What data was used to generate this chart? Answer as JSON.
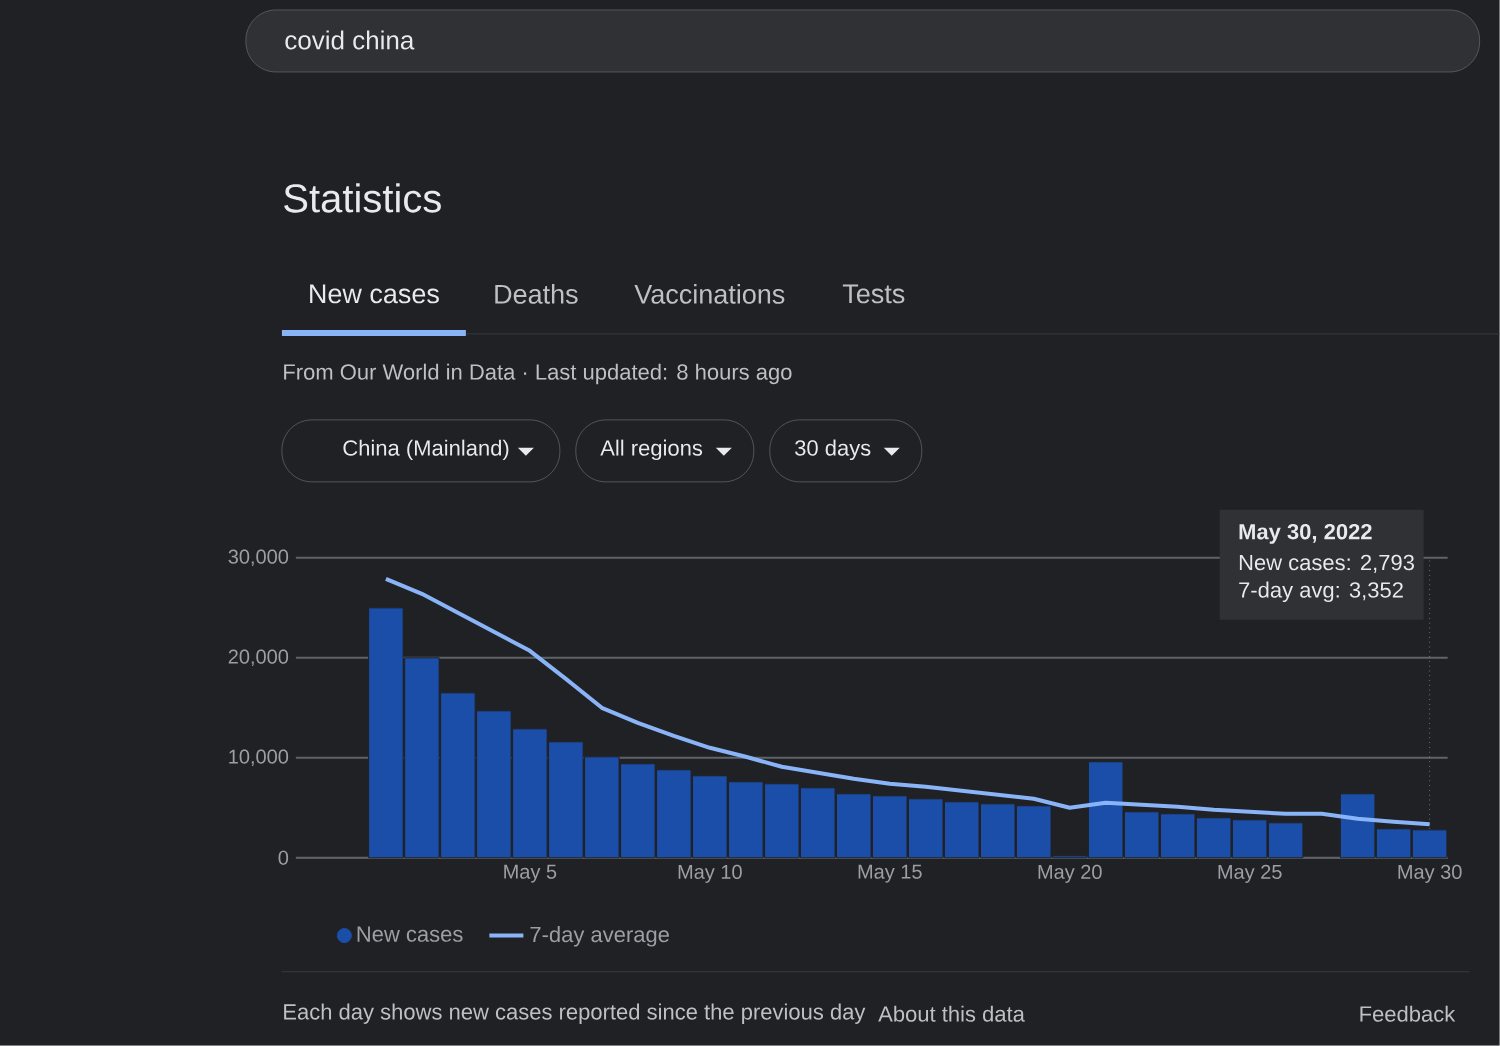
{
  "chart_data": {
    "type": "bar",
    "title": "Statistics",
    "subtitle": "From Our World in Data · Last updated: 8 hours ago",
    "x": [
      "2022-05-01",
      "2022-05-02",
      "2022-05-03",
      "2022-05-04",
      "2022-05-05",
      "2022-05-06",
      "2022-05-07",
      "2022-05-08",
      "2022-05-09",
      "2022-05-10",
      "2022-05-11",
      "2022-05-12",
      "2022-05-13",
      "2022-05-14",
      "2022-05-15",
      "2022-05-16",
      "2022-05-17",
      "2022-05-18",
      "2022-05-19",
      "2022-05-20",
      "2022-05-21",
      "2022-05-22",
      "2022-05-23",
      "2022-05-24",
      "2022-05-25",
      "2022-05-26",
      "2022-05-27",
      "2022-05-28",
      "2022-05-29",
      "2022-05-30"
    ],
    "series": [
      {
        "name": "New cases",
        "color": "#1a4ea8",
        "values": [
          25000,
          20000,
          16500,
          14700,
          12900,
          11600,
          10100,
          9400,
          8800,
          8200,
          7600,
          7400,
          7000,
          6400,
          6200,
          5900,
          5600,
          5400,
          5200,
          200,
          9600,
          4600,
          4400,
          4000,
          3800,
          3500,
          null,
          6400,
          2900,
          2793
        ]
      },
      {
        "name": "7-day average",
        "type": "line",
        "color": "#8ab4f8",
        "values": [
          27900,
          26400,
          24500,
          22600,
          20700,
          17900,
          15000,
          13500,
          12200,
          11000,
          10100,
          9100,
          8500,
          7900,
          7400,
          7100,
          6700,
          6300,
          5900,
          5000,
          5500,
          5300,
          5100,
          4800,
          4600,
          4400,
          4400,
          3900,
          3600,
          3352
        ]
      }
    ],
    "xlim": [
      "2022-04-28T12:00",
      "2022-05-30T12:00"
    ],
    "xticks": [
      {
        "value": "2022-05-05",
        "label": "May 5"
      },
      {
        "value": "2022-05-10",
        "label": "May 10"
      },
      {
        "value": "2022-05-15",
        "label": "May 15"
      },
      {
        "value": "2022-05-20",
        "label": "May 20"
      },
      {
        "value": "2022-05-25",
        "label": "May 25"
      },
      {
        "value": "2022-05-30",
        "label": "May 30"
      }
    ],
    "ylim": [
      0,
      30000
    ],
    "yticks": [
      0,
      {
        "value": 10000,
        "label": "10,000"
      },
      {
        "value": 20000,
        "label": "20,000"
      },
      {
        "value": 30000,
        "label": "30,000"
      }
    ],
    "grid": "y",
    "legend": "bottom left",
    "ref_lines": [
      {
        "axis": "x",
        "value": "2022-05-30",
        "line_style": "dotted",
        "color": "#9aa0a6"
      }
    ],
    "annotations": [
      "covid china",
      "New cases",
      "Deaths",
      "Vaccinations",
      "Tests",
      "China (Mainland)",
      "All regions",
      "30 days",
      "May 30, 2022",
      "New cases: 2,793",
      "7-day avg: 3,352",
      "Each day shows new cases reported since the previous day",
      "About this data",
      "Feedback"
    ]
  }
}
